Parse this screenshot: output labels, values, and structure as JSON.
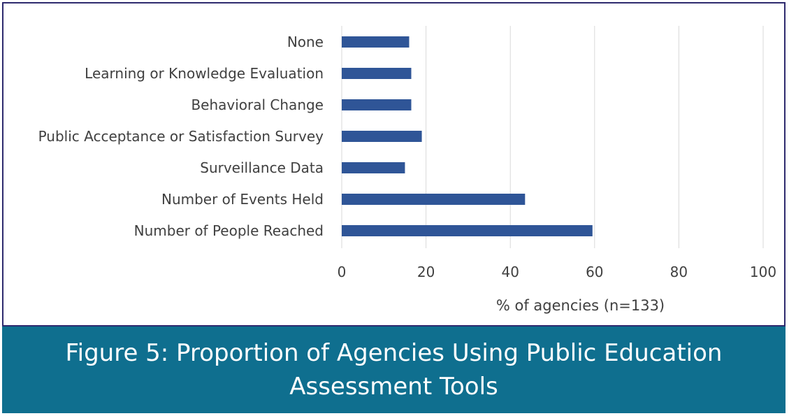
{
  "caption": "Figure 5: Proportion of Agencies Using Public Education Assessment Tools",
  "colors": {
    "bar": "#2f5597",
    "grid": "#d9d9d9",
    "caption_bg": "#0f6f8f",
    "frame": "#2e2a6e"
  },
  "chart_data": {
    "type": "bar",
    "orientation": "horizontal",
    "categories": [
      "None",
      "Learning or Knowledge Evaluation",
      "Behavioral Change",
      "Public Acceptance or Satisfaction Survey",
      "Surveillance Data",
      "Number of Events Held",
      "Number of People Reached"
    ],
    "values": [
      16,
      16.5,
      16.5,
      19,
      15,
      43.5,
      59.5
    ],
    "xlabel": "% of agencies (n=133)",
    "ylabel": "",
    "xlim": [
      0,
      100
    ],
    "xticks": [
      "0",
      "20",
      "40",
      "60",
      "80",
      "100"
    ],
    "grid": "vertical",
    "legend": "none"
  }
}
